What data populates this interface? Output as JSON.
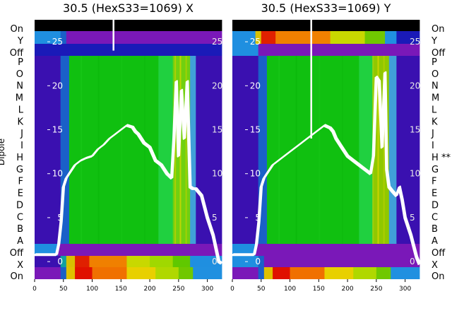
{
  "figure": {
    "ylabel": "Dipole"
  },
  "chart_data": [
    {
      "type": "heatmap",
      "title": "30.5 (HexS33=1069) X",
      "xlabel": "",
      "ylabel": "Dipole",
      "x_ticks": [
        0,
        50,
        100,
        150,
        200,
        250,
        300
      ],
      "xlim": [
        0,
        325
      ],
      "overlay_ticks": [
        "0",
        "5",
        "10",
        "15",
        "20",
        "25"
      ],
      "overlay_ylim": [
        -2,
        27.5
      ],
      "rows": [
        "On",
        "X",
        "Off",
        "A",
        "B",
        "C",
        "D",
        "E",
        "F",
        "G",
        "H",
        "I",
        "J",
        "K",
        "L",
        "M",
        "N",
        "O",
        "P",
        "Off",
        "Y",
        "On"
      ],
      "row_labels_side": "left",
      "row_annotations": {},
      "bands": [
        {
          "row": "On",
          "segments": [
            [
              0,
              325,
              "#000000"
            ]
          ]
        },
        {
          "row": "Y",
          "segments": [
            [
              0,
              45,
              "#1f8fe0"
            ],
            [
              45,
              55,
              "#1a60c8"
            ],
            [
              55,
              325,
              "#7a18b8"
            ]
          ]
        },
        {
          "row": "Off",
          "segments": [
            [
              0,
              325,
              "#1a1ab8"
            ]
          ]
        },
        {
          "row": "P-A",
          "segments": [
            [
              0,
              45,
              "#3a10b0"
            ],
            [
              45,
              60,
              "#1a60c8"
            ],
            [
              60,
              215,
              "#10c010"
            ],
            [
              215,
              240,
              "#20d040"
            ],
            [
              240,
              270,
              "#70d010"
            ],
            [
              270,
              280,
              "#40a0d8"
            ],
            [
              280,
              325,
              "#3a10b0"
            ]
          ]
        },
        {
          "row": "Off",
          "segments": [
            [
              0,
              40,
              "#1f8fe0"
            ],
            [
              40,
              325,
              "#7a18b8"
            ]
          ]
        },
        {
          "row": "X",
          "segments": [
            [
              0,
              45,
              "#3a10b0"
            ],
            [
              45,
              55,
              "#10a0a0"
            ],
            [
              55,
              70,
              "#d8c000"
            ],
            [
              70,
              95,
              "#e02000"
            ],
            [
              95,
              160,
              "#f08000"
            ],
            [
              160,
              200,
              "#c8d800"
            ],
            [
              200,
              240,
              "#a0d800"
            ],
            [
              240,
              270,
              "#60c800"
            ],
            [
              270,
              325,
              "#1f8fe0"
            ]
          ]
        },
        {
          "row": "On",
          "segments": [
            [
              0,
              45,
              "#7a18b8"
            ],
            [
              45,
              55,
              "#1a60c8"
            ],
            [
              55,
              70,
              "#e0c000"
            ],
            [
              70,
              100,
              "#e01000"
            ],
            [
              100,
              160,
              "#f07000"
            ],
            [
              160,
              210,
              "#e8d000"
            ],
            [
              210,
              250,
              "#b0d800"
            ],
            [
              250,
              275,
              "#70c800"
            ],
            [
              275,
              325,
              "#2090e0"
            ]
          ]
        }
      ],
      "spikes": [
        {
          "x": 137,
          "top": 27.5,
          "bottom": 24
        }
      ],
      "series": [
        {
          "x": [
            0,
            10,
            20,
            30,
            38,
            42,
            46,
            50,
            55,
            60,
            70,
            80,
            90,
            100,
            110,
            120,
            130,
            140,
            150,
            160,
            170,
            175,
            180,
            190,
            200,
            210,
            220,
            230,
            238,
            242,
            246,
            250,
            255,
            260,
            265,
            270,
            275,
            280,
            290,
            300,
            310,
            320,
            325
          ],
          "y": [
            0.8,
            0.8,
            0.8,
            0.8,
            0.8,
            2.0,
            4.5,
            8.5,
            9.5,
            10.0,
            11.0,
            11.5,
            11.8,
            12.0,
            12.8,
            13.3,
            14.0,
            14.5,
            15.0,
            15.5,
            15.3,
            14.8,
            14.5,
            13.5,
            13.0,
            11.5,
            11.0,
            10.0,
            9.5,
            14.0,
            20.5,
            12.0,
            19.5,
            14.0,
            20.5,
            8.5,
            8.3,
            8.3,
            7.5,
            5.0,
            3.0,
            0.0,
            -0.2
          ]
        }
      ]
    },
    {
      "type": "heatmap",
      "title": "30.5 (HexS33=1069) Y",
      "xlabel": "",
      "ylabel": "",
      "x_ticks": [
        0,
        50,
        100,
        150,
        200,
        250,
        300
      ],
      "xlim": [
        0,
        325
      ],
      "overlay_ticks": [
        "0",
        "5",
        "10",
        "15",
        "20",
        "25"
      ],
      "overlay_ylim": [
        -2,
        27.5
      ],
      "rows": [
        "On",
        "X",
        "Off",
        "A",
        "B",
        "C",
        "D",
        "E",
        "F",
        "G",
        "H",
        "I",
        "J",
        "K",
        "L",
        "M",
        "N",
        "O",
        "P",
        "Off",
        "Y",
        "On"
      ],
      "row_labels_side": "right",
      "row_annotations": {
        "H": "**"
      },
      "bands": [
        {
          "row": "On",
          "segments": [
            [
              0,
              325,
              "#000000"
            ]
          ]
        },
        {
          "row": "Y",
          "segments": [
            [
              0,
              40,
              "#1f8fe0"
            ],
            [
              40,
              50,
              "#d8c000"
            ],
            [
              50,
              75,
              "#e02000"
            ],
            [
              75,
              170,
              "#f08000"
            ],
            [
              170,
              230,
              "#c8d800"
            ],
            [
              230,
              265,
              "#70c800"
            ],
            [
              265,
              285,
              "#2090e0"
            ],
            [
              285,
              325,
              "#1a1ab8"
            ]
          ]
        },
        {
          "row": "Off",
          "segments": [
            [
              0,
              45,
              "#1f8fe0"
            ],
            [
              45,
              325,
              "#7a18b8"
            ]
          ]
        },
        {
          "row": "P-A",
          "segments": [
            [
              0,
              45,
              "#3a10b0"
            ],
            [
              45,
              60,
              "#1a60c8"
            ],
            [
              60,
              220,
              "#10c010"
            ],
            [
              220,
              245,
              "#20d040"
            ],
            [
              245,
              272,
              "#90c800"
            ],
            [
              272,
              285,
              "#40a0d8"
            ],
            [
              285,
              325,
              "#3a10b0"
            ]
          ]
        },
        {
          "row": "Off",
          "segments": [
            [
              0,
              40,
              "#1f8fe0"
            ],
            [
              40,
              325,
              "#7a18b8"
            ]
          ]
        },
        {
          "row": "X",
          "segments": [
            [
              0,
              45,
              "#1f8fe0"
            ],
            [
              45,
              55,
              "#1a60c8"
            ],
            [
              55,
              325,
              "#7a18b8"
            ]
          ]
        },
        {
          "row": "On",
          "segments": [
            [
              0,
              45,
              "#7a18b8"
            ],
            [
              45,
              55,
              "#1a60c8"
            ],
            [
              55,
              70,
              "#e0c000"
            ],
            [
              70,
              100,
              "#e01000"
            ],
            [
              100,
              160,
              "#f07000"
            ],
            [
              160,
              210,
              "#e8d000"
            ],
            [
              210,
              250,
              "#b0d800"
            ],
            [
              250,
              275,
              "#70c800"
            ],
            [
              275,
              325,
              "#2090e0"
            ]
          ]
        }
      ],
      "spikes": [
        {
          "x": 137,
          "top": 27.5,
          "bottom": 14
        }
      ],
      "series": [
        {
          "x": [
            0,
            10,
            20,
            30,
            38,
            42,
            46,
            50,
            55,
            60,
            70,
            80,
            90,
            100,
            110,
            120,
            130,
            140,
            150,
            160,
            170,
            175,
            180,
            190,
            200,
            210,
            220,
            230,
            240,
            245,
            250,
            255,
            260,
            265,
            268,
            272,
            278,
            285,
            290,
            295,
            300,
            310,
            320,
            325
          ],
          "y": [
            0.8,
            0.8,
            0.8,
            0.8,
            0.8,
            2.0,
            4.5,
            8.5,
            9.5,
            10.0,
            11.0,
            11.5,
            12.0,
            12.5,
            13.0,
            13.5,
            14.0,
            14.5,
            15.0,
            15.5,
            15.2,
            14.8,
            14.0,
            13.0,
            12.0,
            11.5,
            11.0,
            10.5,
            10.0,
            12.0,
            21.0,
            20.5,
            13.0,
            21.5,
            10.5,
            8.5,
            8.0,
            7.5,
            8.5,
            7.0,
            5.0,
            3.0,
            0.5,
            -0.3
          ]
        }
      ]
    }
  ]
}
